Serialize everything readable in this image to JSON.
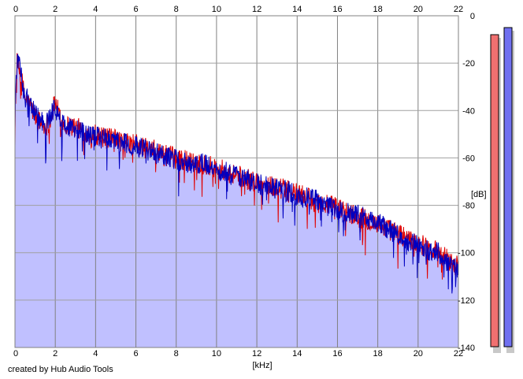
{
  "credit": "created by Hub Audio Tools",
  "chart_data": {
    "type": "line",
    "title": "",
    "xlabel": "[kHz]",
    "ylabel": "[dB]",
    "xlim": [
      0,
      22
    ],
    "ylim": [
      -140,
      0
    ],
    "x_ticks": [
      0,
      2,
      4,
      6,
      8,
      10,
      12,
      14,
      16,
      18,
      20,
      22
    ],
    "y_ticks": [
      0,
      -20,
      -40,
      -60,
      -80,
      -100,
      -120,
      -140
    ],
    "grid": true,
    "fill_color": "#c0c0ff",
    "series": [
      {
        "color": "#e00000",
        "x": [
          0,
          0.1,
          0.2,
          0.35,
          0.5,
          0.75,
          1,
          1.25,
          1.5,
          1.75,
          2,
          2.25,
          2.5,
          3,
          3.5,
          4,
          4.5,
          5,
          5.5,
          6,
          6.5,
          7,
          7.5,
          8,
          8.5,
          9,
          9.5,
          10,
          10.5,
          11,
          11.5,
          12,
          12.5,
          13,
          13.5,
          14,
          14.5,
          15,
          15.5,
          16,
          16.5,
          17,
          17.5,
          18,
          18.5,
          19,
          19.5,
          20,
          20.5,
          21,
          21.5,
          22
        ],
        "y": [
          -42,
          -20,
          -22,
          -28,
          -35,
          -38,
          -42,
          -45,
          -47,
          -44,
          -36,
          -44,
          -46,
          -47,
          -49,
          -50,
          -52,
          -52,
          -54,
          -54,
          -56,
          -57,
          -59,
          -60,
          -61,
          -62,
          -63,
          -64,
          -66,
          -67,
          -69,
          -70,
          -72,
          -72,
          -74,
          -75,
          -77,
          -79,
          -80,
          -81,
          -83,
          -85,
          -86,
          -88,
          -90,
          -92,
          -94,
          -96,
          -98,
          -99,
          -103,
          -106
        ]
      },
      {
        "color": "#0000c0",
        "x": [
          0,
          0.1,
          0.2,
          0.35,
          0.5,
          0.75,
          1,
          1.25,
          1.5,
          1.75,
          2,
          2.25,
          2.5,
          3,
          3.5,
          4,
          4.5,
          5,
          5.5,
          6,
          6.5,
          7,
          7.5,
          8,
          8.5,
          9,
          9.5,
          10,
          10.5,
          11,
          11.5,
          12,
          12.5,
          13,
          13.5,
          14,
          14.5,
          15,
          15.5,
          16,
          16.5,
          17,
          17.5,
          18,
          18.5,
          19,
          19.5,
          20,
          20.5,
          21,
          21.5,
          22
        ],
        "y": [
          -44,
          -18,
          -21,
          -27,
          -34,
          -37,
          -41,
          -44,
          -46,
          -43,
          -38,
          -45,
          -47,
          -48,
          -50,
          -51,
          -52,
          -53,
          -54,
          -55,
          -57,
          -58,
          -59,
          -61,
          -62,
          -62,
          -63,
          -65,
          -66,
          -68,
          -69,
          -71,
          -72,
          -73,
          -74,
          -76,
          -77,
          -78,
          -80,
          -82,
          -83,
          -84,
          -86,
          -87,
          -90,
          -92,
          -95,
          -97,
          -99,
          -100,
          -104,
          -108
        ]
      }
    ],
    "level_meters": {
      "min": -140,
      "max": 0,
      "bars": [
        {
          "color": "#f07070",
          "value": -8
        },
        {
          "color": "#7070f0",
          "value": -5
        }
      ]
    }
  }
}
